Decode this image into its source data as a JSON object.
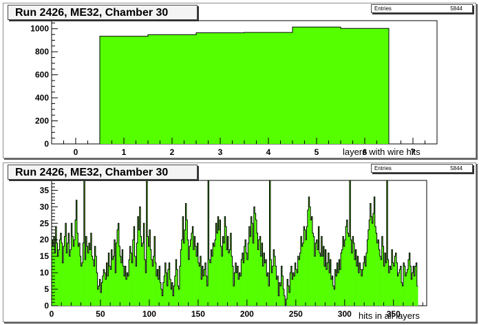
{
  "colors": {
    "fill": "#55ff00",
    "line": "#000000"
  },
  "chart_data": [
    {
      "type": "bar",
      "title": "Run 2426, ME32, Chamber 30",
      "xlabel": "layers with wire hits",
      "ylabel": "",
      "stats": {
        "label": "Entries",
        "value": "5844"
      },
      "xlim": [
        -0.5,
        7.5
      ],
      "ylim": [
        0,
        1070
      ],
      "xticks": [
        0,
        1,
        2,
        3,
        4,
        5,
        6,
        7
      ],
      "yticks": [
        0,
        200,
        400,
        600,
        800,
        1000
      ],
      "categories": [
        1,
        2,
        3,
        4,
        5,
        6
      ],
      "values": [
        935,
        948,
        965,
        968,
        1015,
        1003
      ]
    },
    {
      "type": "bar",
      "title": "Run 2426, ME32, Chamber 30",
      "xlabel": "hits in all layers",
      "ylabel": "",
      "stats": {
        "label": "Entries",
        "value": "5844"
      },
      "xlim": [
        0,
        384
      ],
      "ylim": [
        0,
        38
      ],
      "xticks": [
        0,
        50,
        100,
        150,
        200,
        250,
        300,
        350
      ],
      "yticks": [
        0,
        5,
        10,
        15,
        20,
        25,
        30,
        35
      ],
      "bin_width": 1,
      "values": [
        20,
        18,
        21,
        16,
        24,
        19,
        15,
        17,
        20,
        22,
        19,
        13,
        18,
        21,
        25,
        16,
        19,
        22,
        15,
        17,
        25,
        21,
        18,
        20,
        26,
        32,
        22,
        18,
        19,
        15,
        12,
        13,
        19,
        41,
        14,
        21,
        18,
        16,
        19,
        17,
        22,
        15,
        14,
        12,
        18,
        15,
        10,
        5,
        6,
        8,
        4,
        7,
        9,
        11,
        10,
        8,
        13,
        9,
        16,
        12,
        11,
        17,
        14,
        15,
        20,
        10,
        19,
        23,
        25,
        18,
        15,
        13,
        17,
        12,
        9,
        12,
        8,
        10,
        9,
        14,
        18,
        16,
        13,
        20,
        24,
        15,
        12,
        19,
        27,
        23,
        30,
        21,
        18,
        19,
        25,
        14,
        10,
        41,
        21,
        18,
        23,
        17,
        14,
        12,
        15,
        21,
        13,
        9,
        11,
        8,
        12,
        7,
        5,
        3,
        7,
        9,
        13,
        10,
        6,
        11,
        13,
        8,
        5,
        7,
        3,
        6,
        9,
        14,
        11,
        6,
        5,
        12,
        17,
        20,
        27,
        19,
        23,
        31,
        26,
        20,
        14,
        18,
        20,
        22,
        24,
        17,
        21,
        18,
        15,
        19,
        13,
        12,
        15,
        8,
        12,
        9,
        11,
        13,
        9,
        6,
        41,
        14,
        13,
        17,
        15,
        19,
        18,
        20,
        25,
        22,
        27,
        23,
        26,
        18,
        15,
        21,
        19,
        27,
        24,
        17,
        21,
        16,
        17,
        22,
        15,
        12,
        6,
        10,
        13,
        10,
        12,
        8,
        10,
        9,
        14,
        16,
        13,
        18,
        20,
        16,
        14,
        19,
        24,
        21,
        27,
        25,
        19,
        30,
        28,
        26,
        22,
        17,
        20,
        21,
        15,
        19,
        12,
        16,
        13,
        14,
        9,
        10,
        6,
        41,
        14,
        10,
        12,
        17,
        15,
        12,
        8,
        9,
        3,
        7,
        6,
        12,
        9,
        5,
        3,
        0,
        2,
        8,
        6,
        4,
        10,
        12,
        8,
        10,
        9,
        13,
        11,
        10,
        15,
        14,
        16,
        21,
        18,
        19,
        24,
        23,
        20,
        24,
        29,
        33,
        30,
        26,
        27,
        22,
        21,
        15,
        19,
        20,
        17,
        24,
        16,
        15,
        21,
        15,
        18,
        12,
        17,
        11,
        13,
        16,
        10,
        14,
        8,
        9,
        6,
        5,
        11,
        9,
        13,
        10,
        14,
        11,
        16,
        17,
        21,
        18,
        20,
        24,
        26,
        22,
        21,
        41,
        20,
        16,
        21,
        19,
        14,
        17,
        12,
        15,
        10,
        13,
        11,
        9,
        11,
        13,
        15,
        12,
        16,
        20,
        23,
        26,
        31,
        27,
        25,
        28,
        33,
        24,
        22,
        19,
        20,
        17,
        15,
        14,
        21,
        18,
        12,
        16,
        13,
        41,
        14,
        10,
        12,
        11,
        17,
        13,
        12,
        15,
        16,
        13,
        9,
        10,
        11,
        12,
        7,
        6,
        13,
        12,
        9,
        10,
        11,
        14,
        16,
        12,
        8,
        10,
        12,
        9,
        12,
        13,
        6
      ]
    }
  ]
}
